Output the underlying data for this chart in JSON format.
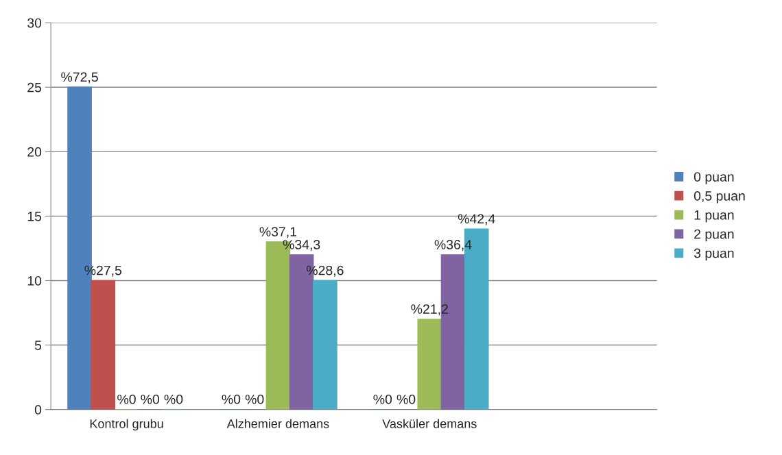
{
  "chart_data": {
    "type": "bar",
    "categories": [
      "Kontrol grubu",
      "Alzhemier demans",
      "Vasküler demans",
      null
    ],
    "series": [
      {
        "name": "0 puan",
        "color": "#4f81bd",
        "values": [
          25,
          0,
          0,
          null
        ]
      },
      {
        "name": "0,5 puan",
        "color": "#c0504d",
        "values": [
          10,
          0,
          0,
          null
        ]
      },
      {
        "name": "1 puan",
        "color": "#9bbb59",
        "values": [
          0,
          13,
          7,
          null
        ]
      },
      {
        "name": "2 puan",
        "color": "#8064a2",
        "values": [
          0,
          12,
          12,
          null
        ]
      },
      {
        "name": "3 puan",
        "color": "#4bacc6",
        "values": [
          0,
          10,
          14,
          null
        ]
      }
    ],
    "annotations": [
      "%72,5",
      "%27,5",
      "%0",
      "%0",
      "%0",
      "%0",
      "%0",
      "%37,1",
      "%34,3",
      "%28,6",
      "%0",
      "%0",
      "%21,2",
      "%36,4",
      "%42,4"
    ],
    "ylim": [
      0,
      30
    ],
    "yticks": [
      0,
      5,
      10,
      15,
      20,
      25,
      30
    ],
    "grid": "y",
    "legend": "right"
  }
}
